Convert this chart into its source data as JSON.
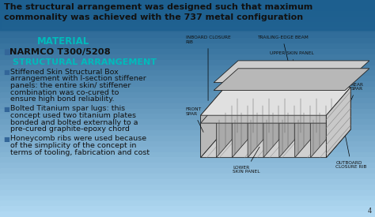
{
  "bg_color": "#cce4f5",
  "top_bg_color": "#1a5a8a",
  "title_text": "The structural arrangement was designed such that maximum\ncommonality was achieved with the 737 metal configuration",
  "title_color": "#111111",
  "title_fontsize": 8.0,
  "material_label": "MATERIAL",
  "material_color": "#00bbbb",
  "material_fontsize": 8.5,
  "narmco_bullet": "■",
  "narmco_text": "NARMCO T300/5208",
  "narmco_fontsize": 8.2,
  "narmco_color": "#111111",
  "struct_label": "STRUCTURAL ARRANGEMENT",
  "struct_color": "#00bbbb",
  "struct_fontsize": 8.0,
  "bullet_color": "#111111",
  "bullet_fontsize": 6.8,
  "bullet_symbol": "■",
  "bullet1_lines": [
    "Stiffened Skin Structural Box",
    "arrangement with I-section stiffener",
    "panels: the entire skin/ stiffener",
    "combination was co-cured to",
    "ensure high bond reliability."
  ],
  "bullet2_lines": [
    "Bolted Titanium spar lugs: this",
    "concept used two titanium plates",
    "bonded and bolted externally to a",
    "pre-cured graphite-epoxy chord"
  ],
  "bullet3_lines": [
    "Honeycomb ribs were used because",
    "of the simplicity of the concept in",
    "terms of tooling, fabrication and cost"
  ],
  "diagram_label_fs": 4.2,
  "page_num": "4"
}
